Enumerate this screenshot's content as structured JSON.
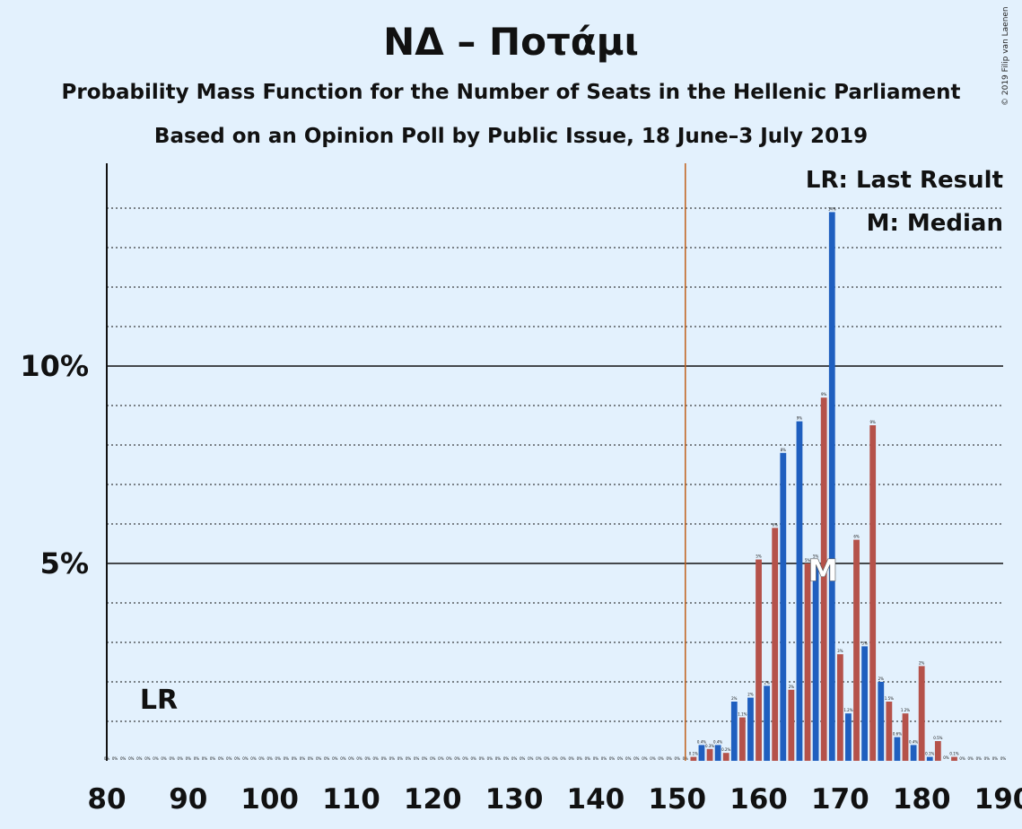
{
  "title": "ΝΔ – Ποτάμι",
  "subtitle1": "Probability Mass Function for the Number of Seats in the Hellenic Parliament",
  "subtitle2": "Based on an Opinion Poll by Public Issue, 18 June–3 July 2019",
  "copyright": "© 2019 Filip van Laenen",
  "legend": {
    "last_result": "LR: Last Result",
    "median": "M: Median"
  },
  "lr_marker": "LR",
  "median_marker": "M",
  "colors": {
    "background": "#e3f1fd",
    "bar_blue": "#1f5fbf",
    "bar_red": "#b5524a",
    "majority_line": "#c0601a"
  },
  "chart_data": {
    "type": "bar",
    "x_label_ticks": [
      "80",
      "90",
      "100",
      "110",
      "120",
      "130",
      "140",
      "150",
      "160",
      "170",
      "180",
      "190"
    ],
    "x_ticks": [
      80,
      90,
      100,
      110,
      120,
      130,
      140,
      150,
      160,
      170,
      180,
      190
    ],
    "y_ticks": [
      5,
      10
    ],
    "y_tick_labels": [
      "5%",
      "10%"
    ],
    "ylim": [
      0,
      14.5
    ],
    "xlim": [
      80,
      190
    ],
    "majority_line_x": 151,
    "median_x": 168,
    "last_result_x": 80,
    "seats": [
      152,
      153,
      154,
      155,
      156,
      157,
      158,
      159,
      160,
      161,
      162,
      163,
      164,
      165,
      166,
      167,
      168,
      169,
      170,
      171,
      172,
      173,
      174,
      175,
      176,
      177,
      178,
      179,
      180,
      181,
      182,
      183,
      184
    ],
    "values": [
      0.1,
      0.4,
      0.3,
      0.4,
      0.2,
      1.5,
      1.1,
      1.6,
      5.1,
      1.9,
      5.9,
      7.8,
      1.8,
      8.6,
      5.0,
      5.1,
      9.2,
      13.9,
      2.7,
      1.2,
      5.6,
      2.9,
      8.5,
      2.0,
      1.5,
      0.6,
      1.2,
      0.4,
      2.4,
      0.1,
      0.5,
      0.0,
      0.1
    ],
    "labels": [
      "0.1%",
      "0.4%",
      "0.3%",
      "0.4%",
      "0.2%",
      "2%",
      "1.1%",
      "2%",
      "5%",
      "2%",
      "6%",
      "8%",
      "2%",
      "9%",
      "5%",
      "5%",
      "9%",
      "14%",
      "3%",
      "1.2%",
      "6%",
      "3%",
      "9%",
      "2%",
      "1.5%",
      "0.6%",
      "1.2%",
      "0.4%",
      "2%",
      "0.1%",
      "0.5%",
      "0%",
      "0.1%"
    ],
    "zero_label": "0%"
  }
}
